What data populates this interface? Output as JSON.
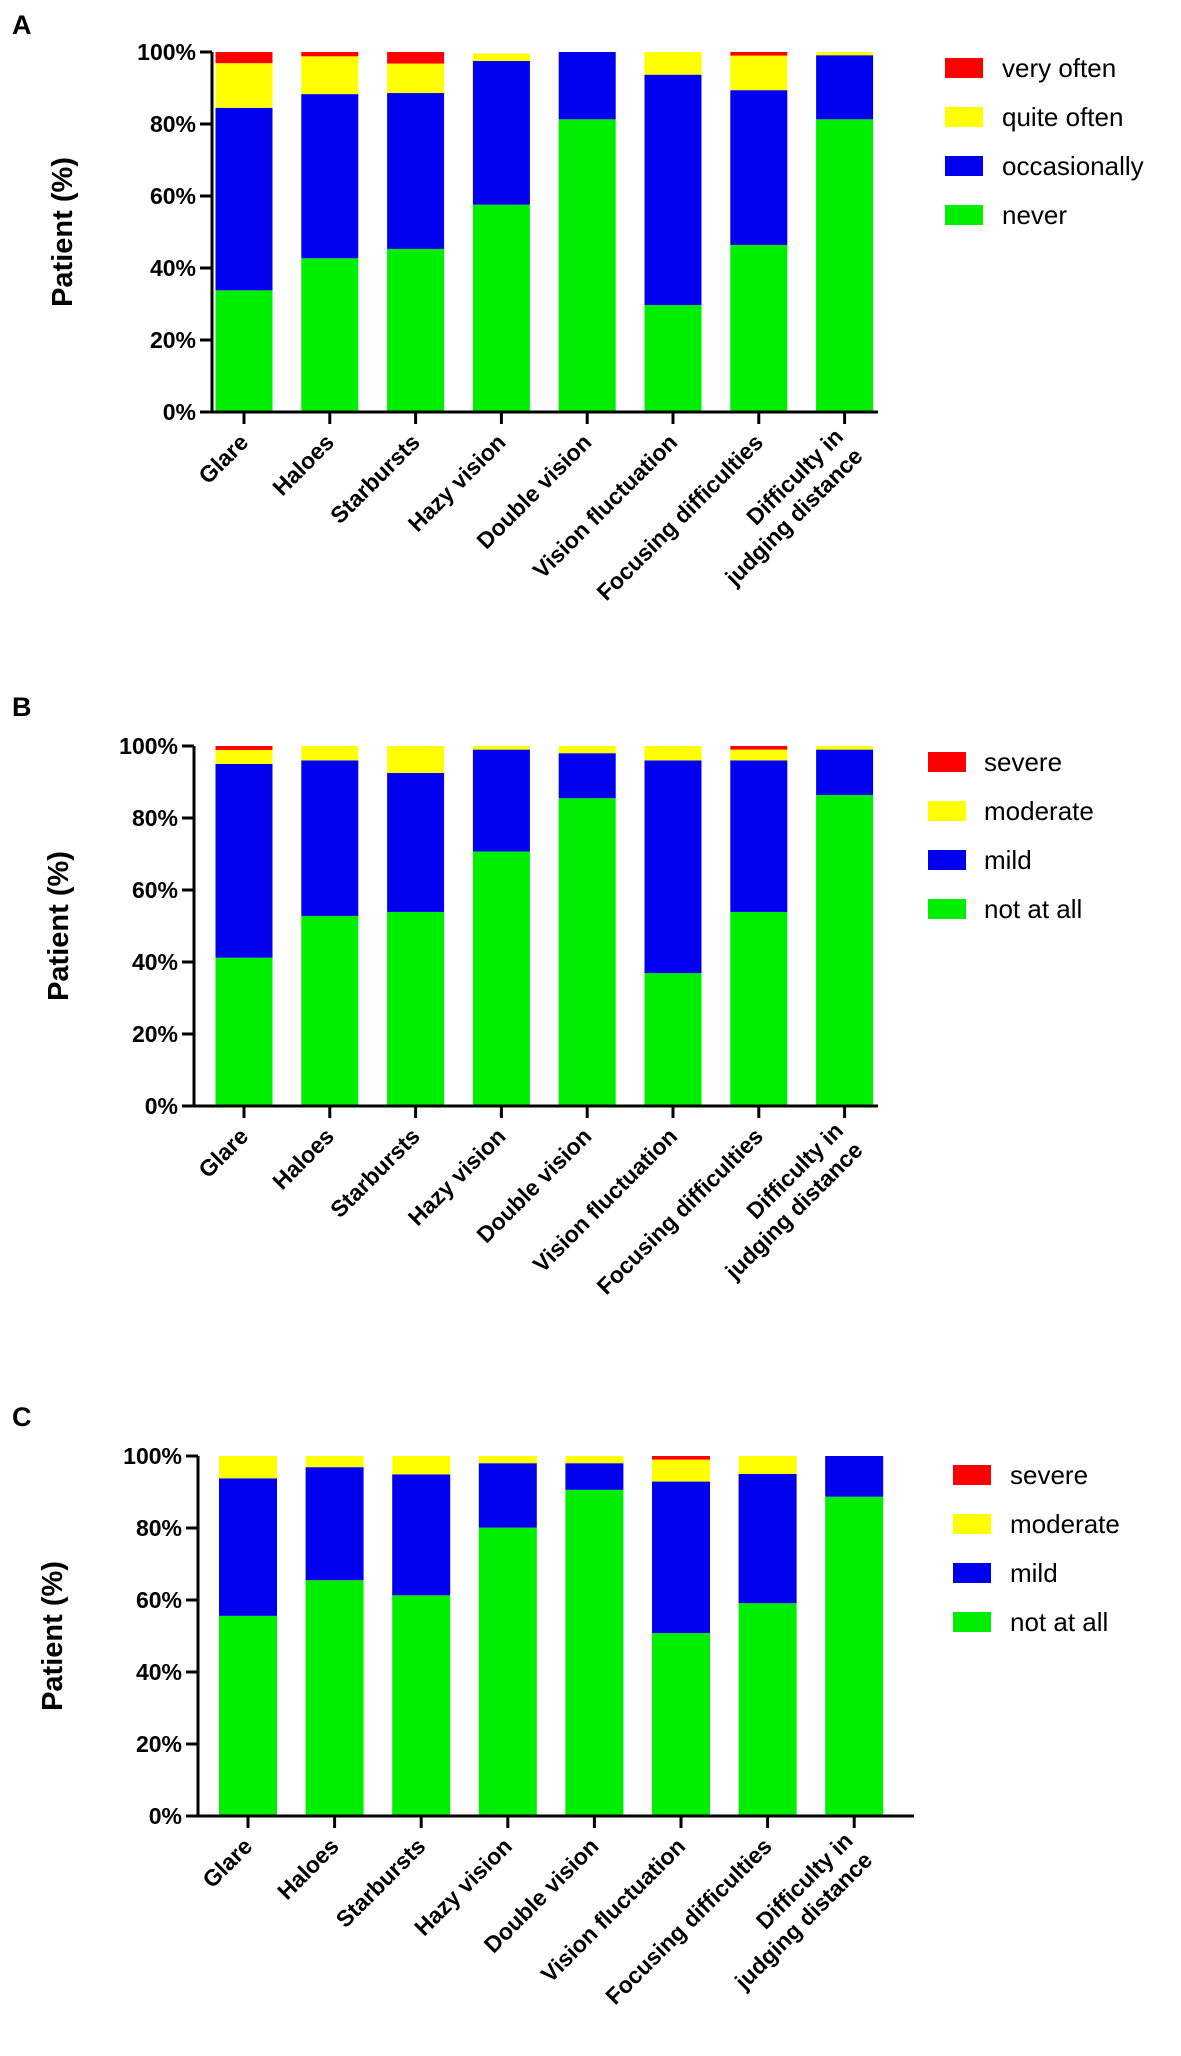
{
  "chart_data": [
    {
      "panel": "A",
      "type": "bar",
      "stacked": true,
      "ylabel": "Patient (%)",
      "ylim": [
        0,
        100
      ],
      "yticks": [
        "0%",
        "20%",
        "40%",
        "60%",
        "80%",
        "100%"
      ],
      "categories": [
        [
          "Glare"
        ],
        [
          "Haloes"
        ],
        [
          "Starbursts"
        ],
        [
          "Hazy vision"
        ],
        [
          "Double vision"
        ],
        [
          "Vision fluctuation"
        ],
        [
          "Focusing difficulties"
        ],
        [
          "Difficulty in",
          "judging distance"
        ]
      ],
      "legend_position": "top-right",
      "series": [
        {
          "name": "never",
          "color": "#00ee00",
          "values": [
            33.8,
            42.7,
            45.3,
            57.6,
            81.3,
            29.7,
            46.4,
            81.3
          ]
        },
        {
          "name": "occasionally",
          "color": "#0000ee",
          "values": [
            50.7,
            45.6,
            43.3,
            39.9,
            18.7,
            64.0,
            43.0,
            17.8
          ]
        },
        {
          "name": "quite often",
          "color": "#ffff00",
          "values": [
            12.4,
            10.5,
            8.2,
            2.1,
            0,
            6.3,
            9.6,
            0.9
          ]
        },
        {
          "name": "very often",
          "color": "#ff0000",
          "values": [
            3.1,
            1.2,
            3.2,
            0,
            0,
            0,
            1.0,
            0
          ]
        }
      ]
    },
    {
      "panel": "B",
      "type": "bar",
      "stacked": true,
      "ylabel": "Patient (%)",
      "ylim": [
        0,
        100
      ],
      "yticks": [
        "0%",
        "20%",
        "40%",
        "60%",
        "80%",
        "100%"
      ],
      "categories": [
        [
          "Glare"
        ],
        [
          "Haloes"
        ],
        [
          "Starbursts"
        ],
        [
          "Hazy vision"
        ],
        [
          "Double vision"
        ],
        [
          "Vision fluctuation"
        ],
        [
          "Focusing difficulties"
        ],
        [
          "Difficulty in",
          "judging distance"
        ]
      ],
      "legend_position": "top-right",
      "series": [
        {
          "name": "not at all",
          "color": "#00ee00",
          "values": [
            41.2,
            52.8,
            53.9,
            70.7,
            85.5,
            36.9,
            53.9,
            86.4
          ]
        },
        {
          "name": "mild",
          "color": "#0000ee",
          "values": [
            53.8,
            43.2,
            38.6,
            28.3,
            12.5,
            59.1,
            42.1,
            12.6
          ]
        },
        {
          "name": "moderate",
          "color": "#ffff00",
          "values": [
            3.9,
            4.0,
            7.5,
            1.0,
            2.0,
            4.0,
            3.0,
            1.0
          ]
        },
        {
          "name": "severe",
          "color": "#ff0000",
          "values": [
            1.1,
            0,
            0,
            0,
            0,
            0,
            1.0,
            0
          ]
        }
      ]
    },
    {
      "panel": "C",
      "type": "bar",
      "stacked": true,
      "ylabel": "Patient (%)",
      "ylim": [
        0,
        100
      ],
      "yticks": [
        "0%",
        "20%",
        "40%",
        "60%",
        "80%",
        "100%"
      ],
      "categories": [
        [
          "Glare"
        ],
        [
          "Haloes"
        ],
        [
          "Starbursts"
        ],
        [
          "Hazy vision"
        ],
        [
          "Double vision"
        ],
        [
          "Vision fluctuation"
        ],
        [
          "Focusing difficulties"
        ],
        [
          "Difficulty in",
          "judging distance"
        ]
      ],
      "legend_position": "top-right",
      "series": [
        {
          "name": "not at all",
          "color": "#00ee00",
          "values": [
            55.6,
            65.5,
            61.3,
            80.1,
            90.6,
            50.8,
            59.1,
            88.7
          ]
        },
        {
          "name": "mild",
          "color": "#0000ee",
          "values": [
            38.2,
            31.4,
            33.6,
            17.9,
            7.4,
            42.1,
            35.9,
            11.3
          ]
        },
        {
          "name": "moderate",
          "color": "#ffff00",
          "values": [
            6.2,
            3.1,
            5.1,
            2.0,
            2.0,
            6.1,
            5.0,
            0
          ]
        },
        {
          "name": "severe",
          "color": "#ff0000",
          "values": [
            0,
            0,
            0,
            0,
            0,
            1.0,
            0,
            0
          ]
        }
      ]
    }
  ]
}
